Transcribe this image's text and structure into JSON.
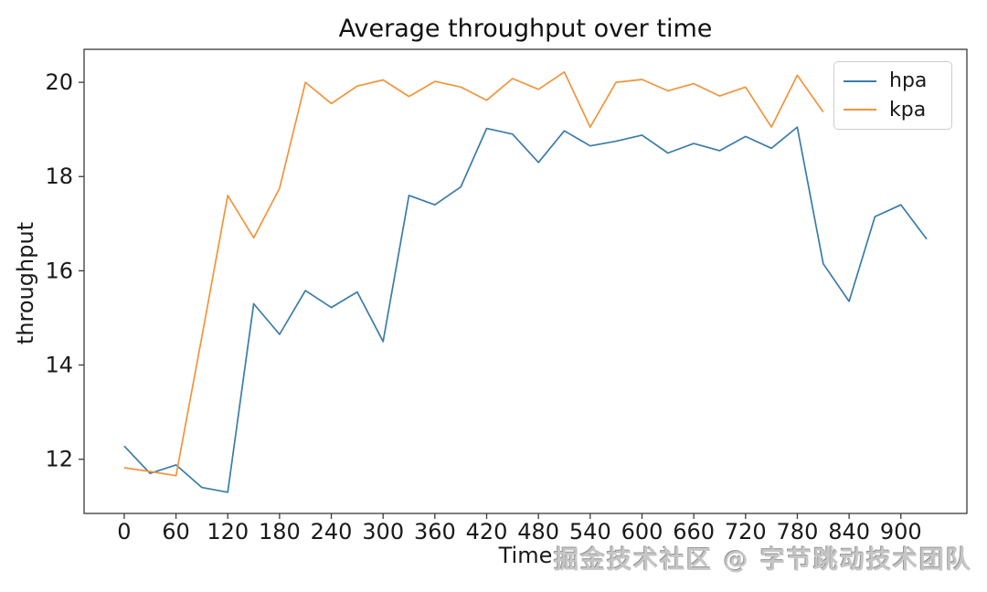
{
  "title": "Average throughput over time",
  "watermark": "掘金技术社区 @ 字节跳动技术团队",
  "chart_data": {
    "type": "line",
    "title": "Average throughput over time",
    "xlabel": "Time",
    "ylabel": "throughput",
    "x_ticks": [
      0,
      60,
      120,
      180,
      240,
      300,
      360,
      420,
      480,
      540,
      600,
      660,
      720,
      780,
      840,
      900
    ],
    "y_ticks": [
      12,
      14,
      16,
      18,
      20
    ],
    "xlim": [
      -46.5,
      976.5
    ],
    "ylim": [
      10.85,
      20.7
    ],
    "grid": false,
    "legend_position": "upper-right",
    "series": [
      {
        "name": "hpa",
        "color": "#3a7ca8",
        "x": [
          0,
          30,
          60,
          90,
          120,
          150,
          180,
          210,
          240,
          270,
          300,
          330,
          360,
          390,
          420,
          450,
          480,
          510,
          540,
          570,
          600,
          630,
          660,
          690,
          720,
          750,
          780,
          810,
          840,
          870,
          900,
          930
        ],
        "values": [
          12.28,
          11.7,
          11.88,
          11.4,
          11.3,
          15.3,
          14.65,
          15.58,
          15.22,
          15.55,
          14.5,
          17.6,
          17.4,
          17.78,
          19.02,
          18.9,
          18.3,
          18.97,
          18.65,
          18.75,
          18.88,
          18.5,
          18.7,
          18.55,
          18.85,
          18.6,
          19.05,
          16.15,
          15.35,
          17.15,
          17.4,
          16.67
        ]
      },
      {
        "name": "kpa",
        "color": "#f2943a",
        "x": [
          0,
          30,
          60,
          90,
          120,
          150,
          180,
          210,
          240,
          270,
          300,
          330,
          360,
          390,
          420,
          450,
          480,
          510,
          540,
          570,
          600,
          630,
          660,
          690,
          720,
          750,
          780,
          810
        ],
        "values": [
          11.82,
          11.74,
          11.65,
          14.6,
          17.6,
          16.7,
          17.75,
          20.0,
          19.55,
          19.92,
          20.05,
          19.7,
          20.02,
          19.9,
          19.62,
          20.08,
          19.85,
          20.22,
          19.05,
          20.0,
          20.06,
          19.82,
          19.97,
          19.71,
          19.9,
          19.05,
          20.15,
          19.37
        ]
      }
    ],
    "axis_color": "#3a3a3a"
  }
}
